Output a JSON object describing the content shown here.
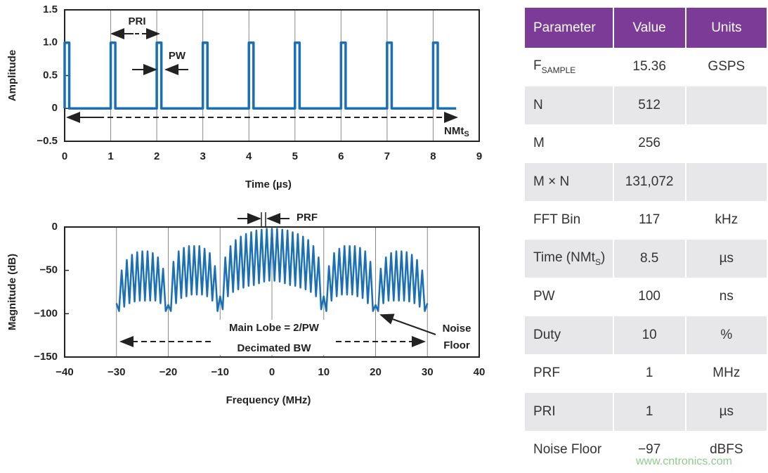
{
  "chart_data": [
    {
      "type": "line",
      "y_label": "Amplitude",
      "x_label": "Time (µs)",
      "x": [
        0,
        0,
        0.1,
        0.1,
        1,
        1,
        1.1,
        1.1,
        2,
        2,
        2.1,
        2.1,
        3,
        3,
        3.1,
        3.1,
        4,
        4,
        4.1,
        4.1,
        5,
        5,
        5.1,
        5.1,
        6,
        6,
        6.1,
        6.1,
        7,
        7,
        7.1,
        7.1,
        8,
        8,
        8.1,
        8.1,
        8.5
      ],
      "series": [
        {
          "color": "#1a6fb5",
          "values": [
            0,
            1,
            1,
            0,
            0,
            1,
            1,
            0,
            0,
            1,
            1,
            0,
            0,
            1,
            1,
            0,
            0,
            1,
            1,
            0,
            0,
            1,
            1,
            0,
            0,
            1,
            1,
            0,
            0,
            1,
            1,
            0,
            0,
            1,
            1,
            0,
            0
          ]
        }
      ],
      "xlim": [
        0,
        9
      ],
      "xticks": [
        0,
        1,
        2,
        3,
        4,
        5,
        6,
        7,
        8,
        9
      ],
      "ylim": [
        -0.5,
        1.5
      ],
      "yticks": [
        1.5,
        {
          "value": 1,
          "label": "1.0"
        },
        0.5,
        0,
        {
          "value": -0.5,
          "label": "−0.5"
        }
      ],
      "grid": "x",
      "annotations": {
        "pri": "PRI",
        "pw": "PW",
        "nmt": "NMt",
        "nmt_sub": "S"
      }
    },
    {
      "type": "line",
      "y_label": "Magnitude (dB)",
      "x_label": "Frequency (MHz)",
      "x": [
        -30,
        -29.5,
        -29,
        -28.5,
        -28,
        -27.5,
        -27,
        -26.5,
        -26,
        -25.5,
        -25,
        -24.5,
        -24,
        -23.5,
        -23,
        -22.5,
        -22,
        -21.5,
        -21,
        -20.5,
        -20,
        -19.5,
        -19,
        -18.5,
        -18,
        -17.5,
        -17,
        -16.5,
        -16,
        -15.5,
        -15,
        -14.5,
        -14,
        -13.5,
        -13,
        -12.5,
        -12,
        -11.5,
        -11,
        -10.5,
        -10,
        -9.5,
        -9,
        -8.5,
        -8,
        -7.5,
        -7,
        -6.5,
        -6,
        -5.5,
        -5,
        -4.5,
        -4,
        -3.5,
        -3,
        -2.5,
        -2,
        -1.5,
        -1,
        -0.5,
        0,
        0.5,
        1,
        1.5,
        2,
        2.5,
        3,
        3.5,
        4,
        4.5,
        5,
        5.5,
        6,
        6.5,
        7,
        7.5,
        8,
        8.5,
        9,
        9.5,
        10,
        10.5,
        11,
        11.5,
        12,
        12.5,
        13,
        13.5,
        14,
        14.5,
        15,
        15.5,
        16,
        16.5,
        17,
        17.5,
        18,
        18.5,
        19,
        19.5,
        20,
        20.5,
        21,
        21.5,
        22,
        22.5,
        23,
        23.5,
        24,
        24.5,
        25,
        25.5,
        26,
        26.5,
        27,
        27.5,
        28,
        28.5,
        29,
        29.5,
        30
      ],
      "series": [
        {
          "color": "#1a6fb5",
          "values": [
            -88,
            -97,
            -50,
            -92,
            -38,
            -88,
            -32,
            -86,
            -29,
            -85,
            -28,
            -85,
            -28,
            -85,
            -30,
            -85,
            -35,
            -88,
            -48,
            -97,
            -90,
            -97,
            -40,
            -88,
            -28,
            -82,
            -24,
            -80,
            -22,
            -78,
            -22,
            -78,
            -22,
            -78,
            -25,
            -80,
            -30,
            -85,
            -45,
            -97,
            -80,
            -95,
            -35,
            -80,
            -22,
            -75,
            -15,
            -72,
            -11,
            -70,
            -8,
            -68,
            -6,
            -67,
            -4,
            -65,
            -3,
            -63,
            -2,
            -62,
            -2,
            -62,
            -2,
            -63,
            -3,
            -65,
            -4,
            -67,
            -6,
            -68,
            -8,
            -70,
            -11,
            -72,
            -15,
            -75,
            -22,
            -80,
            -35,
            -95,
            -80,
            -97,
            -45,
            -85,
            -30,
            -80,
            -25,
            -78,
            -22,
            -78,
            -22,
            -78,
            -22,
            -80,
            -24,
            -82,
            -28,
            -88,
            -40,
            -97,
            -90,
            -97,
            -48,
            -88,
            -35,
            -85,
            -30,
            -85,
            -28,
            -85,
            -28,
            -85,
            -29,
            -86,
            -32,
            -88,
            -38,
            -92,
            -50,
            -97,
            -88
          ]
        }
      ],
      "xlim": [
        -40,
        40
      ],
      "xticks": [
        {
          "value": -40,
          "label": "−40"
        },
        {
          "value": -30,
          "label": "−30"
        },
        {
          "value": -20,
          "label": "−20"
        },
        {
          "value": -10,
          "label": "−10"
        },
        0,
        10,
        20,
        30,
        40
      ],
      "ylim": [
        -150,
        0
      ],
      "yticks": [
        0,
        {
          "value": -50,
          "label": "−50"
        },
        {
          "value": -100,
          "label": "−100"
        },
        {
          "value": -150,
          "label": "−150"
        }
      ],
      "grid": "x",
      "annotations": {
        "prf": "PRF",
        "main_lobe": "Main Lobe = 2/PW",
        "bw": "Decimated BW",
        "noise_1": "Noise",
        "noise_2": "Floor"
      }
    }
  ],
  "table": {
    "header": [
      "Parameter",
      "Value",
      "Units"
    ],
    "rows": [
      [
        {
          "text": "F",
          "sub": "SAMPLE"
        },
        "15.36",
        "GSPS"
      ],
      [
        "N",
        "512",
        null
      ],
      [
        "M",
        "256",
        null
      ],
      [
        "M × N",
        "131,072",
        null
      ],
      [
        "FFT Bin",
        "117",
        "kHz"
      ],
      [
        {
          "text": "Time (NMt",
          "sub": "S",
          "after": ")"
        },
        "8.5",
        "µs"
      ],
      [
        "PW",
        "100",
        "ns"
      ],
      [
        "Duty",
        "10",
        "%"
      ],
      [
        "PRF",
        "1",
        "MHz"
      ],
      [
        "PRI",
        "1",
        "µs"
      ],
      [
        "Noise Floor",
        "−97",
        "dBFS"
      ]
    ]
  },
  "watermark": "www.cntronics.com"
}
